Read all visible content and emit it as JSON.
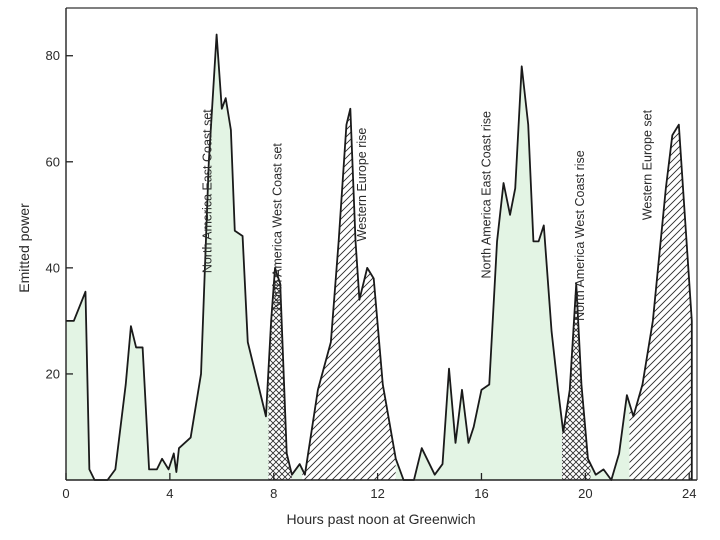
{
  "chart_data": {
    "type": "area",
    "title": "",
    "xlabel": "Hours past noon at Greenwich",
    "ylabel": "Emitted power",
    "xlim": [
      0,
      24.3
    ],
    "ylim": [
      0,
      89
    ],
    "xticks": [
      0,
      4,
      8,
      12,
      16,
      20,
      24
    ],
    "yticks": [
      20,
      40,
      60,
      80
    ],
    "grid": false,
    "fill_colors": {
      "green": "#e3f4e4",
      "outline": "#1a1a1a"
    },
    "series": [
      {
        "values": [
          [
            0,
            30
          ],
          [
            0.3,
            30
          ],
          [
            0.75,
            35.5
          ],
          [
            0.9,
            2
          ],
          [
            1.1,
            0
          ],
          [
            1.6,
            0
          ],
          [
            1.9,
            2
          ],
          [
            2.3,
            18
          ],
          [
            2.5,
            29
          ],
          [
            2.7,
            25
          ],
          [
            2.95,
            25
          ],
          [
            3.2,
            2
          ],
          [
            3.5,
            2
          ],
          [
            3.7,
            4
          ],
          [
            3.95,
            2
          ],
          [
            4.15,
            5
          ],
          [
            4.25,
            1.5
          ],
          [
            4.35,
            6
          ],
          [
            4.8,
            8
          ],
          [
            5.2,
            20
          ],
          [
            5.5,
            60
          ],
          [
            5.8,
            84
          ],
          [
            6.0,
            70
          ],
          [
            6.15,
            72
          ],
          [
            6.35,
            66
          ],
          [
            6.5,
            47
          ],
          [
            6.8,
            46
          ],
          [
            7.0,
            26
          ],
          [
            7.3,
            20
          ],
          [
            7.7,
            12
          ],
          [
            7.9,
            30
          ],
          [
            8.05,
            40
          ],
          [
            8.25,
            37
          ],
          [
            8.5,
            5
          ],
          [
            8.7,
            1
          ],
          [
            9.0,
            3
          ],
          [
            9.2,
            1
          ],
          [
            9.7,
            17
          ],
          [
            10.2,
            26
          ],
          [
            10.5,
            45
          ],
          [
            10.8,
            67
          ],
          [
            10.95,
            70
          ],
          [
            11.15,
            45
          ],
          [
            11.3,
            34
          ],
          [
            11.6,
            40
          ],
          [
            11.85,
            38
          ],
          [
            12.2,
            18
          ],
          [
            12.7,
            4
          ],
          [
            13.0,
            0
          ],
          [
            13.4,
            0
          ],
          [
            13.7,
            6
          ],
          [
            14.2,
            1
          ],
          [
            14.5,
            3
          ],
          [
            14.75,
            21
          ],
          [
            15.0,
            7
          ],
          [
            15.25,
            17
          ],
          [
            15.5,
            7
          ],
          [
            15.7,
            10
          ],
          [
            16.0,
            17
          ],
          [
            16.3,
            18
          ],
          [
            16.6,
            45
          ],
          [
            16.85,
            56
          ],
          [
            17.1,
            50
          ],
          [
            17.3,
            55
          ],
          [
            17.55,
            78
          ],
          [
            17.8,
            67
          ],
          [
            18.0,
            45
          ],
          [
            18.2,
            45
          ],
          [
            18.4,
            48
          ],
          [
            18.7,
            28
          ],
          [
            18.95,
            17
          ],
          [
            19.15,
            9
          ],
          [
            19.4,
            17
          ],
          [
            19.65,
            37
          ],
          [
            19.85,
            18
          ],
          [
            20.1,
            4
          ],
          [
            20.4,
            1
          ],
          [
            20.7,
            2
          ],
          [
            21.0,
            0
          ],
          [
            21.3,
            5
          ],
          [
            21.6,
            16
          ],
          [
            21.85,
            12
          ],
          [
            22.2,
            18
          ],
          [
            22.6,
            30
          ],
          [
            23.1,
            55
          ],
          [
            23.35,
            65
          ],
          [
            23.6,
            67
          ],
          [
            24.1,
            30
          ],
          [
            24.1,
            0
          ]
        ]
      }
    ],
    "regions": [
      {
        "pattern": "green",
        "from": 0,
        "to": 7.8
      },
      {
        "pattern": "cross-hatch",
        "from": 7.8,
        "to": 8.7
      },
      {
        "pattern": "green",
        "from": 8.7,
        "to": 9.1
      },
      {
        "pattern": "diagonal-hatch",
        "from": 9.1,
        "to": 12.7
      },
      {
        "pattern": "green",
        "from": 12.7,
        "to": 19.1
      },
      {
        "pattern": "cross-hatch",
        "from": 19.1,
        "to": 20.2
      },
      {
        "pattern": "green",
        "from": 20.2,
        "to": 21.7
      },
      {
        "pattern": "diagonal-hatch",
        "from": 21.7,
        "to": 24.1
      }
    ],
    "annotations": [
      {
        "text": "North America East Coast set",
        "x": 5.6,
        "y": 39
      },
      {
        "text": "North America West Coast set",
        "x": 8.3,
        "y": 32
      },
      {
        "text": "Western Europe rise",
        "x": 11.55,
        "y": 45
      },
      {
        "text": "North America East Coast rise",
        "x": 16.35,
        "y": 38
      },
      {
        "text": "North America West Coast rise",
        "x": 19.95,
        "y": 30
      },
      {
        "text": "Western Europe set",
        "x": 22.55,
        "y": 49
      }
    ]
  }
}
